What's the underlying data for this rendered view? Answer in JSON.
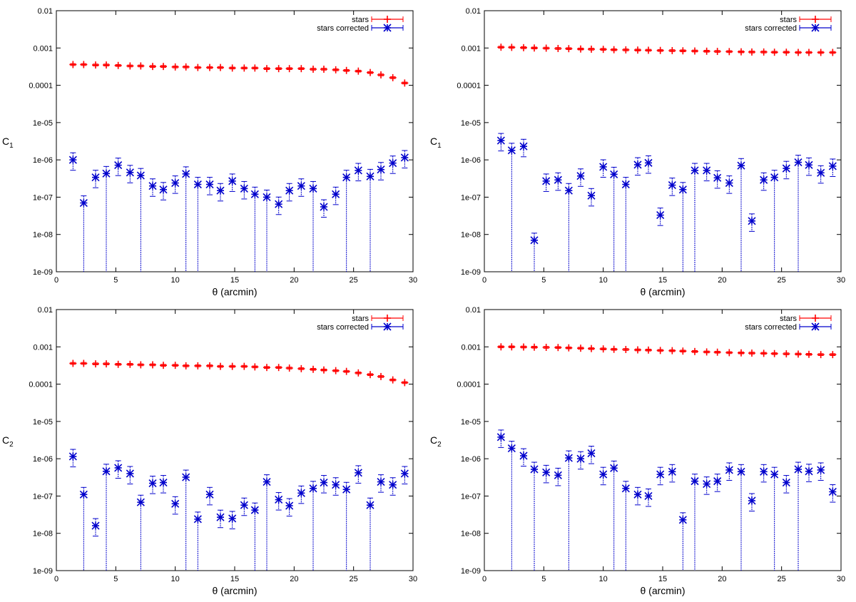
{
  "figure": {
    "description_free": true
  },
  "chart_data": [
    {
      "type": "scatter",
      "panel": "top-left",
      "ylabel": "C",
      "ylabel_sub": "1",
      "xlabel": "θ (arcmin)",
      "xlim": [
        0,
        30
      ],
      "ylim": [
        1e-09,
        0.01
      ],
      "yscale": "log",
      "xticks": [
        "0",
        "5",
        "10",
        "15",
        "20",
        "25",
        "30"
      ],
      "yticks": [
        "1e-09",
        "1e-08",
        "1e-07",
        "1e-06",
        "1e-05",
        "0.0001",
        "0.001",
        "0.01"
      ],
      "legend_position": "top-right",
      "series": [
        {
          "name": "stars",
          "color": "#ff0000",
          "marker": "plus",
          "x": [
            1.4,
            2.3,
            3.3,
            4.2,
            5.2,
            6.2,
            7.1,
            8.1,
            9.0,
            10.0,
            10.9,
            11.9,
            12.9,
            13.8,
            14.8,
            15.8,
            16.7,
            17.7,
            18.7,
            19.6,
            20.6,
            21.6,
            22.5,
            23.5,
            24.4,
            25.4,
            26.4,
            27.3,
            28.3,
            29.3
          ],
          "y": [
            0.00036,
            0.00036,
            0.00035,
            0.00035,
            0.00034,
            0.00033,
            0.00033,
            0.00032,
            0.00032,
            0.00031,
            0.00031,
            0.0003,
            0.0003,
            0.0003,
            0.00029,
            0.00029,
            0.00029,
            0.00028,
            0.00028,
            0.00028,
            0.00028,
            0.00027,
            0.00027,
            0.00026,
            0.00025,
            0.00024,
            0.00022,
            0.00019,
            0.00016,
            0.000115
          ]
        },
        {
          "name": "stars corrected",
          "color": "#0000cc",
          "marker": "star",
          "x": [
            1.4,
            2.3,
            3.3,
            4.2,
            5.2,
            6.2,
            7.1,
            8.1,
            9.0,
            10.0,
            10.9,
            11.9,
            12.9,
            13.8,
            14.8,
            15.8,
            16.7,
            17.7,
            18.7,
            19.6,
            20.6,
            21.6,
            22.5,
            23.5,
            24.4,
            25.4,
            26.4,
            27.3,
            28.3,
            29.3
          ],
          "y": [
            1e-06,
            7e-08,
            3.4e-07,
            4.3e-07,
            7.2e-07,
            4.6e-07,
            3.8e-07,
            2e-07,
            1.6e-07,
            2.4e-07,
            4.2e-07,
            2.2e-07,
            2.2e-07,
            1.5e-07,
            2.7e-07,
            1.7e-07,
            1.2e-07,
            1e-07,
            6.5e-08,
            1.5e-07,
            2e-07,
            1.7e-07,
            5.5e-08,
            1.2e-07,
            3.4e-07,
            5.2e-07,
            3.6e-07,
            5.5e-07,
            8.2e-07,
            1.15e-06
          ]
        }
      ]
    },
    {
      "type": "scatter",
      "panel": "top-right",
      "ylabel": "C",
      "ylabel_sub": "1",
      "xlabel": "θ (arcmin)",
      "xlim": [
        0,
        30
      ],
      "ylim": [
        1e-09,
        0.01
      ],
      "yscale": "log",
      "xticks": [
        "0",
        "5",
        "10",
        "15",
        "20",
        "25",
        "30"
      ],
      "yticks": [
        "1e-09",
        "1e-08",
        "1e-07",
        "1e-06",
        "1e-05",
        "0.0001",
        "0.001",
        "0.01"
      ],
      "legend_position": "top-right",
      "series": [
        {
          "name": "stars",
          "color": "#ff0000",
          "marker": "plus",
          "x": [
            1.4,
            2.3,
            3.3,
            4.2,
            5.2,
            6.2,
            7.1,
            8.1,
            9.0,
            10.0,
            10.9,
            11.9,
            12.9,
            13.8,
            14.8,
            15.8,
            16.7,
            17.7,
            18.7,
            19.6,
            20.6,
            21.6,
            22.5,
            23.5,
            24.4,
            25.4,
            26.4,
            27.3,
            28.3,
            29.3
          ],
          "y": [
            0.00105,
            0.00104,
            0.00102,
            0.001,
            0.00099,
            0.00097,
            0.00096,
            0.00094,
            0.00093,
            0.00092,
            0.0009,
            0.00089,
            0.00088,
            0.00087,
            0.00086,
            0.00085,
            0.00084,
            0.00083,
            0.00082,
            0.00081,
            0.0008,
            0.00079,
            0.00078,
            0.00078,
            0.00077,
            0.00077,
            0.00076,
            0.00076,
            0.00076,
            0.00076
          ]
        },
        {
          "name": "stars corrected",
          "color": "#0000cc",
          "marker": "star",
          "x": [
            1.4,
            2.3,
            3.3,
            4.2,
            5.2,
            6.2,
            7.1,
            8.1,
            9.0,
            10.0,
            10.9,
            11.9,
            12.9,
            13.8,
            14.8,
            15.8,
            16.7,
            17.7,
            18.7,
            19.6,
            20.6,
            21.6,
            22.5,
            23.5,
            24.4,
            25.4,
            26.4,
            27.3,
            28.3,
            29.3
          ],
          "y": [
            3.3e-06,
            1.8e-06,
            2.3e-06,
            7e-09,
            2.7e-07,
            2.9e-07,
            1.5e-07,
            3.7e-07,
            1.1e-07,
            6.5e-07,
            4.1e-07,
            2.2e-07,
            7.4e-07,
            8.3e-07,
            3.3e-08,
            2.1e-07,
            1.6e-07,
            5.2e-07,
            5.2e-07,
            3.3e-07,
            2.4e-07,
            7e-07,
            2.3e-08,
            2.9e-07,
            3.4e-07,
            5.9e-07,
            8.6e-07,
            7.3e-07,
            4.5e-07,
            6.8e-07
          ]
        }
      ]
    },
    {
      "type": "scatter",
      "panel": "bottom-left",
      "ylabel": "C",
      "ylabel_sub": "2",
      "xlabel": "θ (arcmin)",
      "xlim": [
        0,
        30
      ],
      "ylim": [
        1e-09,
        0.01
      ],
      "yscale": "log",
      "xticks": [
        "0",
        "5",
        "10",
        "15",
        "20",
        "25",
        "30"
      ],
      "yticks": [
        "1e-09",
        "1e-08",
        "1e-07",
        "1e-06",
        "1e-05",
        "0.0001",
        "0.001",
        "0.01"
      ],
      "legend_position": "top-right",
      "series": [
        {
          "name": "stars",
          "color": "#ff0000",
          "marker": "plus",
          "x": [
            1.4,
            2.3,
            3.3,
            4.2,
            5.2,
            6.2,
            7.1,
            8.1,
            9.0,
            10.0,
            10.9,
            11.9,
            12.9,
            13.8,
            14.8,
            15.8,
            16.7,
            17.7,
            18.7,
            19.6,
            20.6,
            21.6,
            22.5,
            23.5,
            24.4,
            25.4,
            26.4,
            27.3,
            28.3,
            29.3
          ],
          "y": [
            0.00036,
            0.00036,
            0.00035,
            0.00035,
            0.00034,
            0.00034,
            0.00033,
            0.00033,
            0.00032,
            0.00032,
            0.00031,
            0.00031,
            0.00031,
            0.0003,
            0.0003,
            0.0003,
            0.00029,
            0.00028,
            0.00028,
            0.00027,
            0.00026,
            0.00025,
            0.00024,
            0.00023,
            0.00022,
            0.0002,
            0.00018,
            0.00016,
            0.00013,
            0.00011
          ]
        },
        {
          "name": "stars corrected",
          "color": "#0000cc",
          "marker": "star",
          "x": [
            1.4,
            2.3,
            3.3,
            4.2,
            5.2,
            6.2,
            7.1,
            8.1,
            9.0,
            10.0,
            10.9,
            11.9,
            12.9,
            13.8,
            14.8,
            15.8,
            16.7,
            17.7,
            18.7,
            19.6,
            20.6,
            21.6,
            22.5,
            23.5,
            24.4,
            25.4,
            26.4,
            27.3,
            28.3,
            29.3
          ],
          "y": [
            1.15e-06,
            1.1e-07,
            1.6e-08,
            4.6e-07,
            5.7e-07,
            4e-07,
            6.8e-08,
            2.2e-07,
            2.3e-07,
            6.2e-08,
            3.2e-07,
            2.4e-08,
            1.1e-07,
            2.7e-08,
            2.5e-08,
            5.7e-08,
            4.2e-08,
            2.4e-07,
            8e-08,
            5.5e-08,
            1.2e-07,
            1.6e-07,
            2.3e-07,
            2e-07,
            1.5e-07,
            4.2e-07,
            5.7e-08,
            2.4e-07,
            2e-07,
            4e-07
          ]
        }
      ]
    },
    {
      "type": "scatter",
      "panel": "bottom-right",
      "ylabel": "C",
      "ylabel_sub": "2",
      "xlabel": "θ (arcmin)",
      "xlim": [
        0,
        30
      ],
      "ylim": [
        1e-09,
        0.01
      ],
      "yscale": "log",
      "xticks": [
        "0",
        "5",
        "10",
        "15",
        "20",
        "25",
        "30"
      ],
      "yticks": [
        "1e-09",
        "1e-08",
        "1e-07",
        "1e-06",
        "1e-05",
        "0.0001",
        "0.001",
        "0.01"
      ],
      "legend_position": "top-right",
      "series": [
        {
          "name": "stars",
          "color": "#ff0000",
          "marker": "plus",
          "x": [
            1.4,
            2.3,
            3.3,
            4.2,
            5.2,
            6.2,
            7.1,
            8.1,
            9.0,
            10.0,
            10.9,
            11.9,
            12.9,
            13.8,
            14.8,
            15.8,
            16.7,
            17.7,
            18.7,
            19.6,
            20.6,
            21.6,
            22.5,
            23.5,
            24.4,
            25.4,
            26.4,
            27.3,
            28.3,
            29.3
          ],
          "y": [
            0.001,
            0.001,
            0.00099,
            0.00098,
            0.00097,
            0.00096,
            0.00094,
            0.00092,
            0.0009,
            0.00088,
            0.00086,
            0.00085,
            0.00083,
            0.00082,
            0.0008,
            0.00079,
            0.00077,
            0.00075,
            0.00073,
            0.00072,
            0.0007,
            0.00069,
            0.00068,
            0.00067,
            0.00066,
            0.00065,
            0.00064,
            0.00063,
            0.00062,
            0.00062
          ]
        },
        {
          "name": "stars corrected",
          "color": "#0000cc",
          "marker": "star",
          "x": [
            1.4,
            2.3,
            3.3,
            4.2,
            5.2,
            6.2,
            7.1,
            8.1,
            9.0,
            10.0,
            10.9,
            11.9,
            12.9,
            13.8,
            14.8,
            15.8,
            16.7,
            17.7,
            18.7,
            19.6,
            20.6,
            21.6,
            22.5,
            23.5,
            24.4,
            25.4,
            26.4,
            27.3,
            28.3,
            29.3
          ],
          "y": [
            3.8e-06,
            1.9e-06,
            1.2e-06,
            5.2e-07,
            4.3e-07,
            3.6e-07,
            1.05e-06,
            1e-06,
            1.4e-06,
            3.8e-07,
            5.6e-07,
            1.6e-07,
            1.1e-07,
            1e-07,
            3.8e-07,
            4.5e-07,
            2.3e-08,
            2.5e-07,
            2.1e-07,
            2.5e-07,
            5e-07,
            4.5e-07,
            7.5e-08,
            4.5e-07,
            3.8e-07,
            2.3e-07,
            5.2e-07,
            4.6e-07,
            5e-07,
            1.3e-07
          ]
        }
      ]
    }
  ]
}
